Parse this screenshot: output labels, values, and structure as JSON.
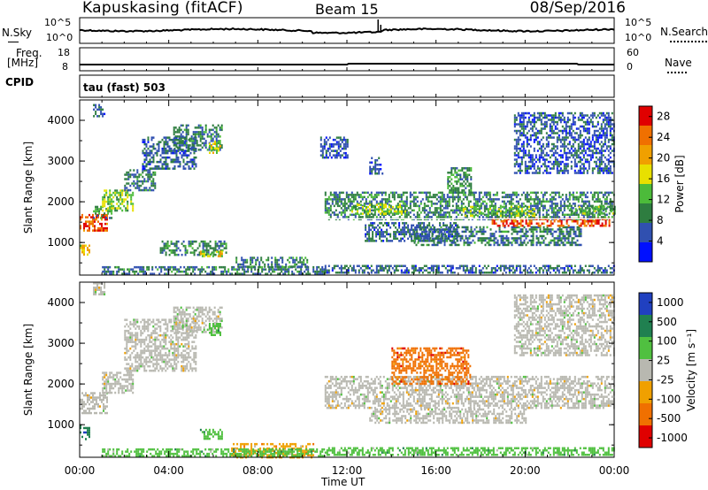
{
  "header": {
    "station": "Kapuskasing (fitACF)",
    "beam": "Beam 15",
    "date": "08/Sep/2016"
  },
  "top_panels": {
    "nsky_label": "N.Sky",
    "nsky_ticks": [
      "10^5",
      "10^0"
    ],
    "nsearch_label": "N.Search",
    "nsearch_ticks": [
      "10^5",
      "10^0"
    ],
    "freq_label": "Freq.",
    "freq_unit": "[MHz]",
    "freq_ticks": [
      "18",
      "8"
    ],
    "nave_label": "Nave",
    "nave_ticks": [
      "60",
      "0"
    ],
    "cpid_label": "CPID",
    "cpid_text": "tau (fast) 503"
  },
  "colors": {
    "power": [
      "#0010ff",
      "#3050b0",
      "#2e7d40",
      "#4cbb3a",
      "#e8e000",
      "#f0a000",
      "#f07000",
      "#e00000"
    ],
    "velocity": [
      "#2040c0",
      "#208050",
      "#50c040",
      "#b8b8b0",
      "#f0a000",
      "#f07000",
      "#e00000"
    ],
    "line": "#000000"
  },
  "chart_data": [
    {
      "type": "heatmap",
      "title": "Power",
      "ylabel": "Slant Range [km]",
      "xlabel": "Time UT",
      "x_ticks": [
        "00:00",
        "04:00",
        "08:00",
        "12:00",
        "16:00",
        "20:00",
        "00:00"
      ],
      "xlim_hours": [
        0,
        24
      ],
      "y_ticks": [
        "1000",
        "2000",
        "3000",
        "4000"
      ],
      "ylim_km": [
        200,
        4500
      ],
      "colorbar_label": "Power [dB]",
      "colorbar_ticks": [
        "4",
        "8",
        "12",
        "16",
        "20",
        "24",
        "28"
      ],
      "colorbar_range": [
        0,
        30
      ],
      "regions": [
        {
          "t": [
            0.0,
            1.2
          ],
          "r": [
            1300,
            1700
          ],
          "v": 26
        },
        {
          "t": [
            0.0,
            0.4
          ],
          "r": [
            700,
            950
          ],
          "v": 18
        },
        {
          "t": [
            0.6,
            1.4
          ],
          "r": [
            1600,
            1900
          ],
          "v": 10
        },
        {
          "t": [
            1.0,
            2.4
          ],
          "r": [
            1800,
            2300
          ],
          "v": 14
        },
        {
          "t": [
            2.0,
            3.4
          ],
          "r": [
            2300,
            2800
          ],
          "v": 8
        },
        {
          "t": [
            2.8,
            5.2
          ],
          "r": [
            2800,
            3600
          ],
          "v": 7
        },
        {
          "t": [
            4.2,
            6.4
          ],
          "r": [
            3300,
            3900
          ],
          "v": 8
        },
        {
          "t": [
            5.8,
            6.3
          ],
          "r": [
            3200,
            3500
          ],
          "v": 16
        },
        {
          "t": [
            0.6,
            1.1
          ],
          "r": [
            4100,
            4400
          ],
          "v": 7
        },
        {
          "t": [
            3.6,
            6.6
          ],
          "r": [
            700,
            1050
          ],
          "v": 9
        },
        {
          "t": [
            5.4,
            6.4
          ],
          "r": [
            650,
            800
          ],
          "v": 17
        },
        {
          "t": [
            1.0,
            11.0
          ],
          "r": [
            250,
            420
          ],
          "v": 8
        },
        {
          "t": [
            7.0,
            10.2
          ],
          "r": [
            400,
            650
          ],
          "v": 9
        },
        {
          "t": [
            11.0,
            24.0
          ],
          "r": [
            1550,
            2250
          ],
          "v": 9
        },
        {
          "t": [
            12.2,
            14.6
          ],
          "r": [
            1700,
            1950
          ],
          "v": 14
        },
        {
          "t": [
            17.2,
            20.4
          ],
          "r": [
            1650,
            1900
          ],
          "v": 14
        },
        {
          "t": [
            12.8,
            17.0
          ],
          "r": [
            1050,
            1500
          ],
          "v": 7
        },
        {
          "t": [
            15.0,
            22.5
          ],
          "r": [
            950,
            1400
          ],
          "v": 8
        },
        {
          "t": [
            18.5,
            23.8
          ],
          "r": [
            1400,
            1600
          ],
          "v": 26
        },
        {
          "t": [
            22.0,
            24.0
          ],
          "r": [
            1700,
            1900
          ],
          "v": 12
        },
        {
          "t": [
            11.0,
            24.0
          ],
          "r": [
            250,
            450
          ],
          "v": 7
        },
        {
          "t": [
            16.5,
            17.6
          ],
          "r": [
            2200,
            2850
          ],
          "v": 10
        },
        {
          "t": [
            19.5,
            24.0
          ],
          "r": [
            2700,
            4200
          ],
          "v": 6
        },
        {
          "t": [
            10.8,
            12.0
          ],
          "r": [
            3100,
            3600
          ],
          "v": 6
        },
        {
          "t": [
            13.0,
            13.6
          ],
          "r": [
            2700,
            3100
          ],
          "v": 6
        }
      ]
    },
    {
      "type": "heatmap",
      "title": "Velocity",
      "ylabel": "Slant Range [km]",
      "xlabel": "Time UT",
      "x_ticks": [
        "00:00",
        "04:00",
        "08:00",
        "12:00",
        "16:00",
        "20:00",
        "00:00"
      ],
      "xlim_hours": [
        0,
        24
      ],
      "y_ticks": [
        "1000",
        "2000",
        "3000",
        "4000"
      ],
      "ylim_km": [
        200,
        4500
      ],
      "colorbar_label": "Velocity [m s⁻¹]",
      "colorbar_ticks": [
        "1000",
        "500",
        "100",
        "25",
        "-25",
        "-100",
        "-500",
        "-1000"
      ],
      "regions": [
        {
          "t": [
            0.0,
            1.2
          ],
          "r": [
            1300,
            1800
          ],
          "c": 3
        },
        {
          "t": [
            0.0,
            0.4
          ],
          "r": [
            650,
            1000
          ],
          "c": 1
        },
        {
          "t": [
            1.0,
            2.4
          ],
          "r": [
            1800,
            2300
          ],
          "c": 3
        },
        {
          "t": [
            2.0,
            5.2
          ],
          "r": [
            2300,
            3600
          ],
          "c": 3
        },
        {
          "t": [
            4.2,
            6.4
          ],
          "r": [
            3300,
            3900
          ],
          "c": 3
        },
        {
          "t": [
            5.8,
            6.3
          ],
          "r": [
            3200,
            3500
          ],
          "c": 2
        },
        {
          "t": [
            0.6,
            1.1
          ],
          "r": [
            4200,
            4500
          ],
          "c": 3
        },
        {
          "t": [
            5.4,
            6.4
          ],
          "r": [
            650,
            900
          ],
          "c": 2
        },
        {
          "t": [
            6.8,
            10.5
          ],
          "r": [
            200,
            550
          ],
          "c": 4
        },
        {
          "t": [
            1.0,
            11.0
          ],
          "r": [
            250,
            420
          ],
          "c": 2
        },
        {
          "t": [
            11.0,
            24.0
          ],
          "r": [
            1400,
            2200
          ],
          "c": 3
        },
        {
          "t": [
            13.0,
            20.0
          ],
          "r": [
            1050,
            1400
          ],
          "c": 3
        },
        {
          "t": [
            14.0,
            17.5
          ],
          "r": [
            2000,
            2900
          ],
          "c": 5
        },
        {
          "t": [
            11.0,
            24.0
          ],
          "r": [
            250,
            450
          ],
          "c": 2
        },
        {
          "t": [
            19.5,
            24.0
          ],
          "r": [
            2700,
            4200
          ],
          "c": 3
        }
      ]
    }
  ]
}
